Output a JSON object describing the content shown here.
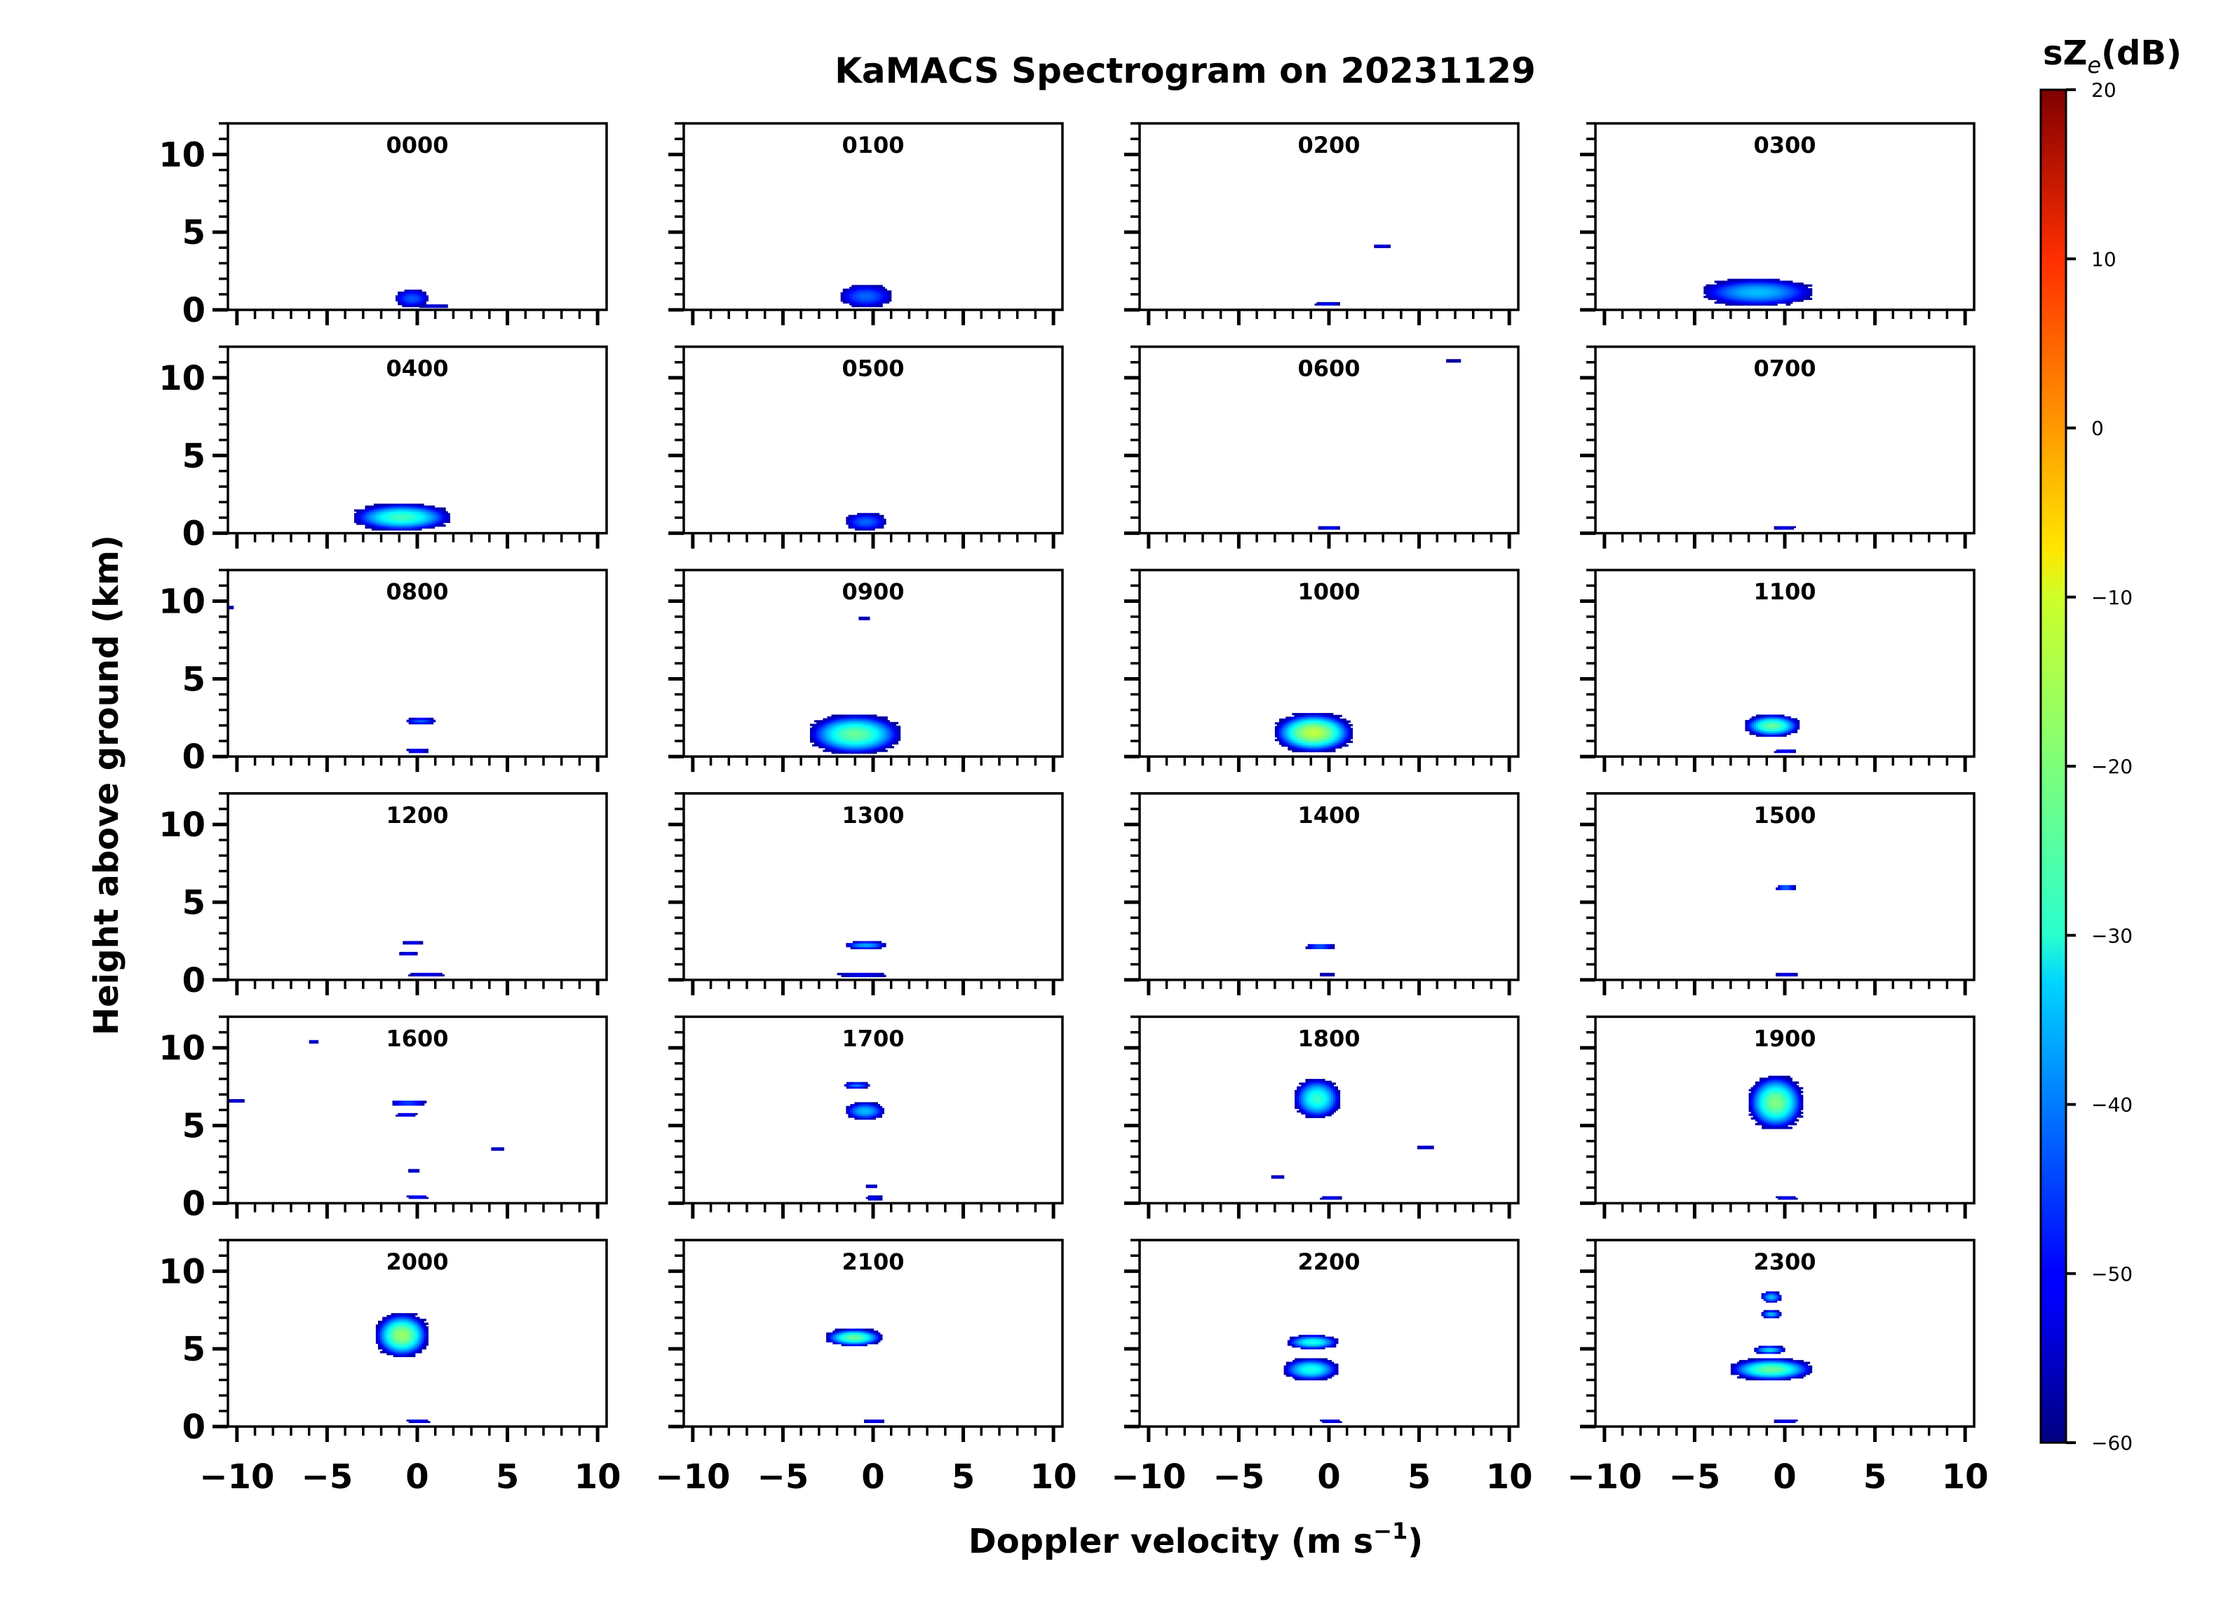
{
  "chart_data": {
    "type": "heatmap",
    "title": "KaMACS Spectrogram on 20231129",
    "xlabel_main": "Doppler velocity (m s",
    "xlabel_exp": "−1",
    "xlabel_close": ")",
    "ylabel": "Height above ground (km)",
    "colorbar_label_main": "sZ",
    "colorbar_label_sub": "e",
    "colorbar_label_unit": "(dB)",
    "colorbar_range": [
      -60,
      20
    ],
    "colorbar_ticks": [
      "−60",
      "−50",
      "−40",
      "−30",
      "−20",
      "−10",
      "0",
      "10",
      "20"
    ],
    "colorbar_tick_values": [
      -60,
      -50,
      -40,
      -30,
      -20,
      -10,
      0,
      10,
      20
    ],
    "colormap": "jet",
    "xlim": [
      -10.5,
      10.5
    ],
    "ylim": [
      0,
      12
    ],
    "x_ticks": [
      "−10",
      "−5",
      "0",
      "5",
      "10"
    ],
    "x_tick_values": [
      -10,
      -5,
      0,
      5,
      10
    ],
    "y_ticks": [
      "0",
      "5",
      "10"
    ],
    "y_tick_values": [
      0,
      5,
      10
    ],
    "rows": 6,
    "cols": 4,
    "panels": [
      {
        "label": "0000",
        "blobs": [
          {
            "vmin": -1.2,
            "vmax": 0.6,
            "hmin": 0.2,
            "hmax": 1.3,
            "peak": -43
          },
          {
            "vmin": 0.0,
            "vmax": 1.8,
            "hmin": 0.15,
            "hmax": 0.35,
            "peak": -52
          }
        ]
      },
      {
        "label": "0100",
        "blobs": [
          {
            "vmin": -1.8,
            "vmax": 1.0,
            "hmin": 0.2,
            "hmax": 1.6,
            "peak": -42
          }
        ]
      },
      {
        "label": "0200",
        "blobs": [
          {
            "vmin": -0.8,
            "vmax": 0.6,
            "hmin": 0.3,
            "hmax": 0.5,
            "peak": -50
          },
          {
            "vmin": 2.5,
            "vmax": 3.4,
            "hmin": 4.0,
            "hmax": 4.2,
            "peak": -52
          }
        ]
      },
      {
        "label": "0300",
        "blobs": [
          {
            "vmin": -4.5,
            "vmax": 1.5,
            "hmin": 0.3,
            "hmax": 2.0,
            "peak": -35
          }
        ]
      },
      {
        "label": "0400",
        "blobs": [
          {
            "vmin": -3.5,
            "vmax": 1.8,
            "hmin": 0.2,
            "hmax": 1.9,
            "peak": -25
          }
        ]
      },
      {
        "label": "0500",
        "blobs": [
          {
            "vmin": -1.5,
            "vmax": 0.7,
            "hmin": 0.2,
            "hmax": 1.3,
            "peak": -42
          }
        ]
      },
      {
        "label": "0600",
        "blobs": [
          {
            "vmin": -0.6,
            "vmax": 0.6,
            "hmin": 0.25,
            "hmax": 0.45,
            "peak": -50
          },
          {
            "vmin": 6.5,
            "vmax": 7.3,
            "hmin": 11.0,
            "hmax": 11.2,
            "peak": -58
          }
        ]
      },
      {
        "label": "0700",
        "blobs": [
          {
            "vmin": -0.6,
            "vmax": 0.6,
            "hmin": 0.25,
            "hmax": 0.45,
            "peak": -50
          }
        ]
      },
      {
        "label": "0800",
        "blobs": [
          {
            "vmin": -0.6,
            "vmax": 1.0,
            "hmin": 2.1,
            "hmax": 2.5,
            "peak": -42
          },
          {
            "vmin": -0.6,
            "vmax": 0.6,
            "hmin": 0.25,
            "hmax": 0.5,
            "peak": -48
          },
          {
            "vmin": -10.5,
            "vmax": -10.2,
            "hmin": 9.5,
            "hmax": 9.7,
            "peak": -55
          }
        ]
      },
      {
        "label": "0900",
        "blobs": [
          {
            "vmin": -3.5,
            "vmax": 1.5,
            "hmin": 0.2,
            "hmax": 2.7,
            "peak": -22
          },
          {
            "vmin": -0.8,
            "vmax": -0.2,
            "hmin": 8.8,
            "hmax": 9.0,
            "peak": -55
          }
        ]
      },
      {
        "label": "1000",
        "blobs": [
          {
            "vmin": -3.0,
            "vmax": 1.3,
            "hmin": 0.3,
            "hmax": 2.8,
            "peak": -15
          }
        ]
      },
      {
        "label": "1100",
        "blobs": [
          {
            "vmin": -2.2,
            "vmax": 0.8,
            "hmin": 1.3,
            "hmax": 2.7,
            "peak": -22
          },
          {
            "vmin": -0.6,
            "vmax": 0.6,
            "hmin": 0.25,
            "hmax": 0.45,
            "peak": -48
          }
        ]
      },
      {
        "label": "1200",
        "blobs": [
          {
            "vmin": -0.8,
            "vmax": 0.3,
            "hmin": 2.3,
            "hmax": 2.5,
            "peak": -50
          },
          {
            "vmin": -1.0,
            "vmax": 0.0,
            "hmin": 1.6,
            "hmax": 1.8,
            "peak": -50
          },
          {
            "vmin": -0.5,
            "vmax": 1.5,
            "hmin": 0.25,
            "hmax": 0.45,
            "peak": -50
          }
        ]
      },
      {
        "label": "1300",
        "blobs": [
          {
            "vmin": -1.5,
            "vmax": 0.7,
            "hmin": 2.0,
            "hmax": 2.5,
            "peak": -36
          },
          {
            "vmin": -2.0,
            "vmax": 0.7,
            "hmin": 0.2,
            "hmax": 0.45,
            "peak": -50
          }
        ]
      },
      {
        "label": "1400",
        "blobs": [
          {
            "vmin": -1.3,
            "vmax": 0.3,
            "hmin": 2.0,
            "hmax": 2.3,
            "peak": -40
          },
          {
            "vmin": -0.5,
            "vmax": 0.3,
            "hmin": 0.25,
            "hmax": 0.45,
            "peak": -55
          }
        ]
      },
      {
        "label": "1500",
        "blobs": [
          {
            "vmin": -0.5,
            "vmax": 0.6,
            "hmin": 5.8,
            "hmax": 6.1,
            "peak": -38
          },
          {
            "vmin": -0.5,
            "vmax": 0.7,
            "hmin": 0.25,
            "hmax": 0.45,
            "peak": -50
          }
        ]
      },
      {
        "label": "1600",
        "blobs": [
          {
            "vmin": -1.5,
            "vmax": 0.5,
            "hmin": 6.3,
            "hmax": 6.6,
            "peak": -42
          },
          {
            "vmin": -1.2,
            "vmax": 0.0,
            "hmin": 5.6,
            "hmax": 5.8,
            "peak": -48
          },
          {
            "vmin": -0.6,
            "vmax": 0.6,
            "hmin": 0.3,
            "hmax": 0.5,
            "peak": -48
          },
          {
            "vmin": -0.5,
            "vmax": 0.1,
            "hmin": 2.0,
            "hmax": 2.2,
            "peak": -52
          },
          {
            "vmin": -6.0,
            "vmax": -5.5,
            "hmin": 10.3,
            "hmax": 10.5,
            "peak": -52
          },
          {
            "vmin": -10.5,
            "vmax": -9.6,
            "hmin": 6.5,
            "hmax": 6.7,
            "peak": -52
          },
          {
            "vmin": 4.1,
            "vmax": 4.8,
            "hmin": 3.4,
            "hmax": 3.6,
            "peak": -52
          }
        ]
      },
      {
        "label": "1700",
        "blobs": [
          {
            "vmin": -1.5,
            "vmax": 0.6,
            "hmin": 5.4,
            "hmax": 6.5,
            "peak": -35
          },
          {
            "vmin": -1.6,
            "vmax": -0.2,
            "hmin": 7.4,
            "hmax": 7.8,
            "peak": -40
          },
          {
            "vmin": -0.4,
            "vmax": 0.5,
            "hmin": 0.2,
            "hmax": 0.5,
            "peak": -50
          },
          {
            "vmin": -0.4,
            "vmax": 0.2,
            "hmin": 1.0,
            "hmax": 1.2,
            "peak": -52
          }
        ]
      },
      {
        "label": "1800",
        "blobs": [
          {
            "vmin": -1.9,
            "vmax": 0.6,
            "hmin": 5.5,
            "hmax": 8.0,
            "peak": -26
          },
          {
            "vmin": -0.5,
            "vmax": 0.7,
            "hmin": 0.25,
            "hmax": 0.45,
            "peak": -50
          },
          {
            "vmin": 4.9,
            "vmax": 5.8,
            "hmin": 3.5,
            "hmax": 3.7,
            "peak": -52
          },
          {
            "vmin": -3.2,
            "vmax": -2.5,
            "hmin": 1.6,
            "hmax": 1.8,
            "peak": -52
          }
        ]
      },
      {
        "label": "1900",
        "blobs": [
          {
            "vmin": -2.0,
            "vmax": 1.0,
            "hmin": 4.8,
            "hmax": 8.2,
            "peak": -20
          },
          {
            "vmin": -0.5,
            "vmax": 0.7,
            "hmin": 0.25,
            "hmax": 0.45,
            "peak": -50
          }
        ]
      },
      {
        "label": "2000",
        "blobs": [
          {
            "vmin": -2.3,
            "vmax": 0.6,
            "hmin": 4.5,
            "hmax": 7.3,
            "peak": -18
          },
          {
            "vmin": -0.6,
            "vmax": 0.7,
            "hmin": 0.25,
            "hmax": 0.45,
            "peak": -50
          }
        ]
      },
      {
        "label": "2100",
        "blobs": [
          {
            "vmin": -2.6,
            "vmax": 0.5,
            "hmin": 5.2,
            "hmax": 6.3,
            "peak": -22
          },
          {
            "vmin": -0.5,
            "vmax": 0.6,
            "hmin": 0.25,
            "hmax": 0.45,
            "peak": -50
          }
        ]
      },
      {
        "label": "2200",
        "blobs": [
          {
            "vmin": -2.3,
            "vmax": 0.5,
            "hmin": 5.0,
            "hmax": 5.9,
            "peak": -28
          },
          {
            "vmin": -2.5,
            "vmax": 0.5,
            "hmin": 3.0,
            "hmax": 4.4,
            "peak": -28
          },
          {
            "vmin": -0.5,
            "vmax": 0.7,
            "hmin": 0.25,
            "hmax": 0.45,
            "peak": -50
          }
        ]
      },
      {
        "label": "2300",
        "blobs": [
          {
            "vmin": -3.0,
            "vmax": 1.5,
            "hmin": 3.0,
            "hmax": 4.4,
            "peak": -22
          },
          {
            "vmin": -1.7,
            "vmax": 0.0,
            "hmin": 4.7,
            "hmax": 5.2,
            "peak": -32
          },
          {
            "vmin": -1.3,
            "vmax": -0.2,
            "hmin": 7.0,
            "hmax": 7.5,
            "peak": -35
          },
          {
            "vmin": -1.3,
            "vmax": -0.2,
            "hmin": 8.0,
            "hmax": 8.7,
            "peak": -35
          },
          {
            "vmin": -0.6,
            "vmax": 0.7,
            "hmin": 0.25,
            "hmax": 0.45,
            "peak": -50
          }
        ]
      }
    ]
  }
}
